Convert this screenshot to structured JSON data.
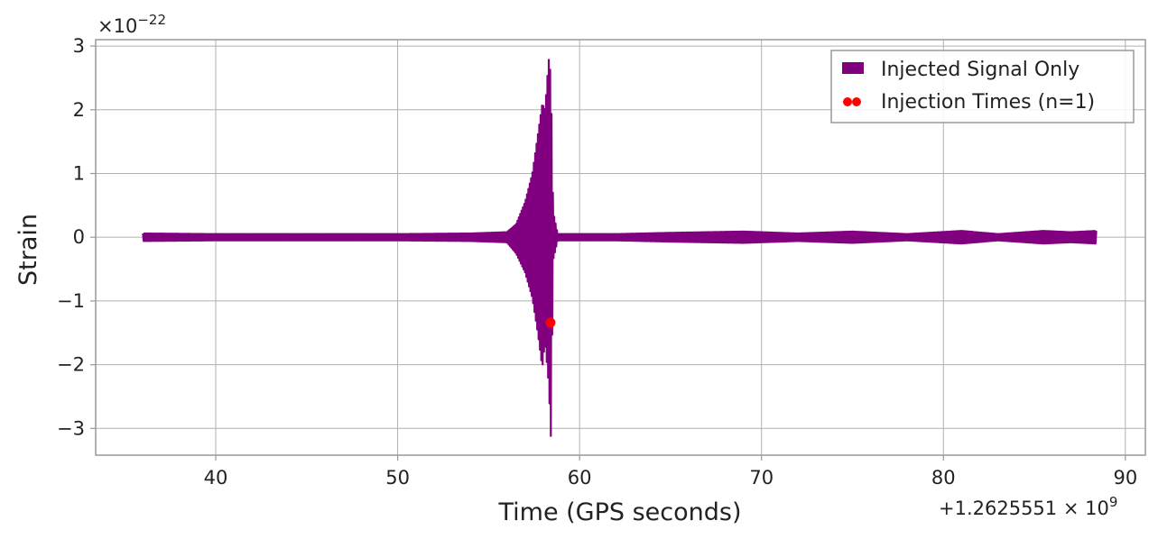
{
  "chart_data": {
    "type": "line",
    "xlabel": "Time (GPS seconds)",
    "ylabel": "Strain",
    "x_offset_label": "+1.2625551 × 10",
    "x_offset_exp": "9",
    "y_scale_label": "×10",
    "y_scale_exp": "−22",
    "xlim": [
      33.4,
      91.1
    ],
    "ylim": [
      -3.42,
      3.1
    ],
    "x_ticks": [
      40,
      50,
      60,
      70,
      80,
      90
    ],
    "x_tick_labels": [
      "40",
      "50",
      "60",
      "70",
      "80",
      "90"
    ],
    "y_ticks": [
      3,
      2,
      1,
      0,
      -1,
      -2,
      -3
    ],
    "y_tick_labels": [
      "3",
      "2",
      "1",
      "0",
      "−1",
      "−2",
      "−3"
    ],
    "grid": true,
    "legend_position": "top-right",
    "series": [
      {
        "name": "Injected Signal Only",
        "color": "#800080",
        "kind": "line",
        "envelope": [
          {
            "x": 36.0,
            "min": -0.06,
            "max": 0.06
          },
          {
            "x": 40.0,
            "min": -0.05,
            "max": 0.05
          },
          {
            "x": 45.0,
            "min": -0.05,
            "max": 0.05
          },
          {
            "x": 50.0,
            "min": -0.05,
            "max": 0.05
          },
          {
            "x": 54.0,
            "min": -0.06,
            "max": 0.06
          },
          {
            "x": 56.0,
            "min": -0.08,
            "max": 0.08
          },
          {
            "x": 56.5,
            "min": -0.25,
            "max": 0.2
          },
          {
            "x": 57.0,
            "min": -0.55,
            "max": 0.55
          },
          {
            "x": 57.4,
            "min": -0.95,
            "max": 1.0
          },
          {
            "x": 57.7,
            "min": -1.5,
            "max": 1.6
          },
          {
            "x": 57.95,
            "min": -2.05,
            "max": 2.1
          },
          {
            "x": 58.1,
            "min": -1.65,
            "max": 2.0
          },
          {
            "x": 58.3,
            "min": -2.3,
            "max": 2.8
          },
          {
            "x": 58.42,
            "min": -3.12,
            "max": 2.55
          },
          {
            "x": 58.55,
            "min": -0.35,
            "max": 0.4
          },
          {
            "x": 58.8,
            "min": -0.05,
            "max": 0.05
          },
          {
            "x": 62.0,
            "min": -0.05,
            "max": 0.05
          },
          {
            "x": 65.0,
            "min": -0.07,
            "max": 0.07
          },
          {
            "x": 69.0,
            "min": -0.09,
            "max": 0.09
          },
          {
            "x": 72.0,
            "min": -0.06,
            "max": 0.06
          },
          {
            "x": 75.0,
            "min": -0.09,
            "max": 0.09
          },
          {
            "x": 78.0,
            "min": -0.05,
            "max": 0.05
          },
          {
            "x": 81.0,
            "min": -0.1,
            "max": 0.1
          },
          {
            "x": 83.0,
            "min": -0.05,
            "max": 0.05
          },
          {
            "x": 85.5,
            "min": -0.1,
            "max": 0.1
          },
          {
            "x": 87.0,
            "min": -0.08,
            "max": 0.08
          },
          {
            "x": 88.4,
            "min": -0.1,
            "max": 0.1
          }
        ]
      },
      {
        "name": "Injection Times (n=1)",
        "color": "#ff0000",
        "kind": "scatter",
        "points": [
          {
            "x": 58.4,
            "y": -1.34
          }
        ]
      }
    ]
  }
}
